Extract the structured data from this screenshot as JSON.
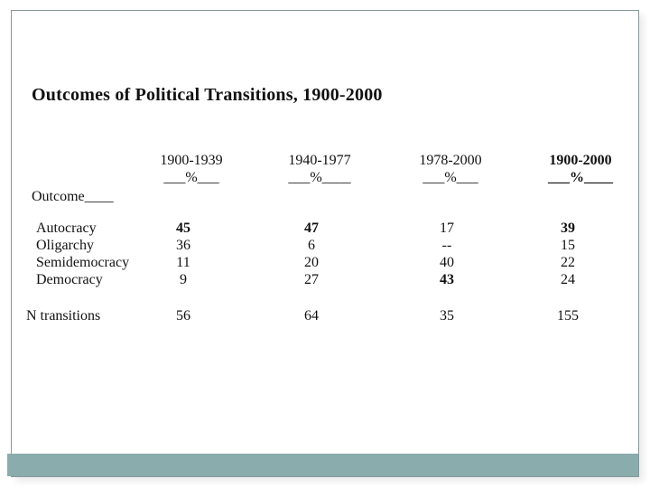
{
  "slide": {
    "title": "Outcomes of Political Transitions, 1900-2000",
    "accent_bar_color": "#8BACAD",
    "border_color": "#8A9899"
  },
  "table": {
    "row_header_label": "Outcome____",
    "columns": [
      {
        "period": "1900-1939",
        "pct_line": "___%___"
      },
      {
        "period": "1940-1977",
        "pct_line": "___%____"
      },
      {
        "period": "1978-2000",
        "pct_line": "___%___"
      },
      {
        "period": "1900-2000",
        "pct_line": "___%____"
      }
    ],
    "rows": [
      {
        "label": "Autocracy",
        "values": [
          "45",
          "47",
          "17",
          "39"
        ]
      },
      {
        "label": "Oligarchy",
        "values": [
          "36",
          "6",
          "--",
          "15"
        ]
      },
      {
        "label": "Semidemocracy",
        "values": [
          "11",
          "20",
          "40",
          "22"
        ]
      },
      {
        "label": "Democracy",
        "values": [
          "9",
          "27",
          "43",
          "24"
        ]
      }
    ],
    "footer_row": {
      "label": "N transitions",
      "values": [
        "56",
        "64",
        "35",
        "155"
      ]
    }
  }
}
